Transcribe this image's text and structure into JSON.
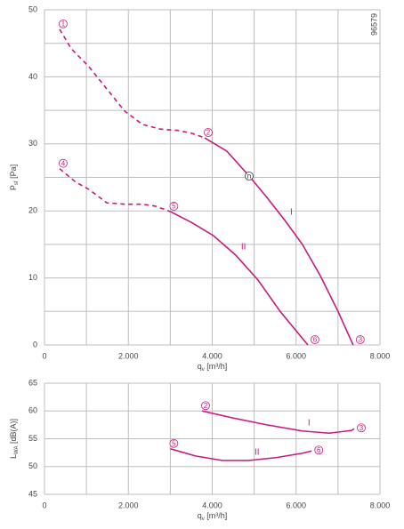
{
  "chart_data": [
    {
      "type": "line",
      "annotation": "96579",
      "ylabel": {
        "symbol": "P",
        "subscript": "sf",
        "unit": " [Pa]"
      },
      "xlabel": {
        "symbol": "q",
        "subscript": "v",
        "unit": " [m³/h]"
      },
      "xlim": [
        0,
        8000
      ],
      "ylim": [
        0,
        50
      ],
      "xticks": [
        0,
        {
          "value": 2000,
          "label": "2.000"
        },
        {
          "value": 4000,
          "label": "4.000"
        },
        {
          "value": 6000,
          "label": "6.000"
        },
        {
          "value": 8000,
          "label": "8.000"
        }
      ],
      "xminor": [
        1000,
        3000,
        5000,
        7000
      ],
      "yticks": [
        0,
        10,
        20,
        30,
        40,
        50
      ],
      "yminor": [
        5,
        15,
        25,
        35,
        45
      ],
      "grid": true,
      "series": [
        {
          "style": "dashed",
          "color": "#c8197f",
          "x": [
            360,
            637,
            1061,
            1485,
            1910,
            2334,
            2759,
            3183,
            3500,
            3820
          ],
          "y": [
            47.1,
            44.2,
            41.5,
            38.2,
            34.9,
            32.9,
            32.2,
            32,
            31.6,
            30.9
          ],
          "point_labels": [
            "1",
            null,
            null,
            null,
            null,
            null,
            null,
            null,
            null,
            null
          ]
        },
        {
          "name": "I",
          "style": "solid",
          "color": "#c8197f",
          "x": [
            3820,
            4350,
            4880,
            5305,
            5730,
            6150,
            6580,
            7000,
            7360
          ],
          "y": [
            30.9,
            28.9,
            25.2,
            22,
            18.6,
            15,
            10.3,
            5,
            0
          ],
          "point_labels": [
            "2",
            null,
            "n",
            null,
            null,
            null,
            null,
            null,
            "3"
          ]
        },
        {
          "style": "dashed",
          "color": "#c8197f",
          "x": [
            360,
            743,
            1061,
            1485,
            1910,
            2334,
            2650,
            3000
          ],
          "y": [
            26.3,
            24.3,
            23.2,
            21.2,
            21,
            21,
            20.7,
            19.9
          ],
          "point_labels": [
            "4",
            null,
            null,
            null,
            null,
            null,
            null,
            null
          ]
        },
        {
          "name": "II",
          "style": "solid",
          "color": "#c8197f",
          "x": [
            3000,
            3500,
            4030,
            4560,
            5090,
            5620,
            6280
          ],
          "y": [
            19.9,
            18.3,
            16.3,
            13.4,
            9.7,
            5,
            0
          ],
          "point_labels": [
            "5",
            null,
            null,
            null,
            null,
            null,
            "6"
          ]
        }
      ]
    },
    {
      "type": "line",
      "ylabel": {
        "symbol": "L",
        "subscript": "WA",
        "unit": " [dB(A)]"
      },
      "xlabel": {
        "symbol": "q",
        "subscript": "v",
        "unit": " [m³/h]"
      },
      "xlim": [
        0,
        8000
      ],
      "ylim": [
        45,
        65
      ],
      "xticks": [
        0,
        {
          "value": 2000,
          "label": "2.000"
        },
        {
          "value": 4000,
          "label": "4.000"
        },
        {
          "value": 6000,
          "label": "6.000"
        },
        {
          "value": 8000,
          "label": "8.000"
        }
      ],
      "xminor": [
        1000,
        3000,
        5000,
        7000
      ],
      "yticks": [
        45,
        50,
        55,
        60,
        65
      ],
      "yminor": [],
      "grid": true,
      "series": [
        {
          "name": "I",
          "style": "solid",
          "color": "#c8197f",
          "x": [
            3756,
            4456,
            5305,
            6150,
            6790,
            7320,
            7385
          ],
          "y": [
            60,
            58.8,
            57.5,
            56.4,
            56,
            56.5,
            56.8
          ],
          "point_labels": [
            "2",
            null,
            null,
            null,
            null,
            null,
            "3"
          ]
        },
        {
          "name": "II",
          "style": "solid",
          "color": "#c8197f",
          "x": [
            3000,
            3600,
            4240,
            4880,
            5520,
            6150,
            6370
          ],
          "y": [
            53.2,
            51.9,
            51.1,
            51.1,
            51.6,
            52.4,
            52.8
          ],
          "point_labels": [
            "5",
            null,
            null,
            null,
            null,
            null,
            "6"
          ]
        }
      ]
    }
  ]
}
